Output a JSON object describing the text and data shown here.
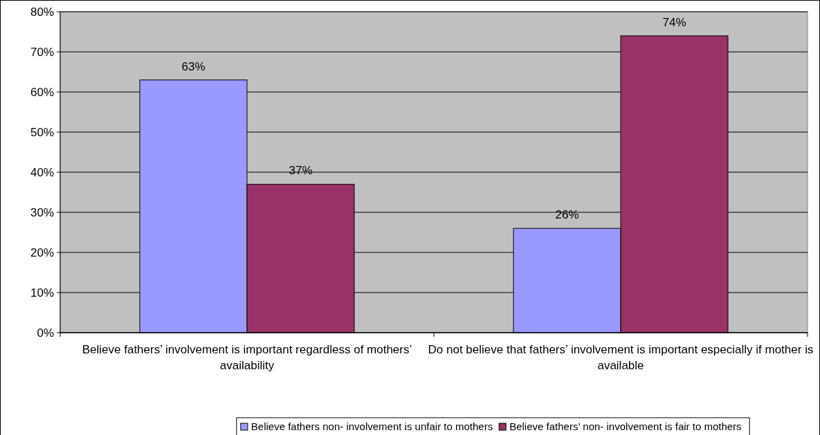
{
  "chart_data": {
    "type": "bar",
    "categories": [
      "Believe fathers’ involvement is important regardless of mothers’ availability",
      "Do not believe that fathers’ involvement is important especially if mother is available"
    ],
    "series": [
      {
        "name": "Believe fathers non- involvement is unfair to mothers",
        "color": "#9999ff",
        "values": [
          63,
          26
        ],
        "value_labels": [
          "63%",
          "26%"
        ]
      },
      {
        "name": "Believe fathers’ non- involvement is fair to mothers",
        "color": "#993366",
        "values": [
          37,
          74
        ],
        "value_labels": [
          "37%",
          "74%"
        ]
      }
    ],
    "ylim": [
      0,
      80
    ],
    "yticks": [
      {
        "value": 0,
        "label": "0%"
      },
      {
        "value": 10,
        "label": "10%"
      },
      {
        "value": 20,
        "label": "20%"
      },
      {
        "value": 30,
        "label": "30%"
      },
      {
        "value": 40,
        "label": "40%"
      },
      {
        "value": 50,
        "label": "50%"
      },
      {
        "value": 60,
        "label": "60%"
      },
      {
        "value": 70,
        "label": "70%"
      },
      {
        "value": 80,
        "label": "80%"
      }
    ],
    "grid": "y",
    "legend": "bottom"
  }
}
